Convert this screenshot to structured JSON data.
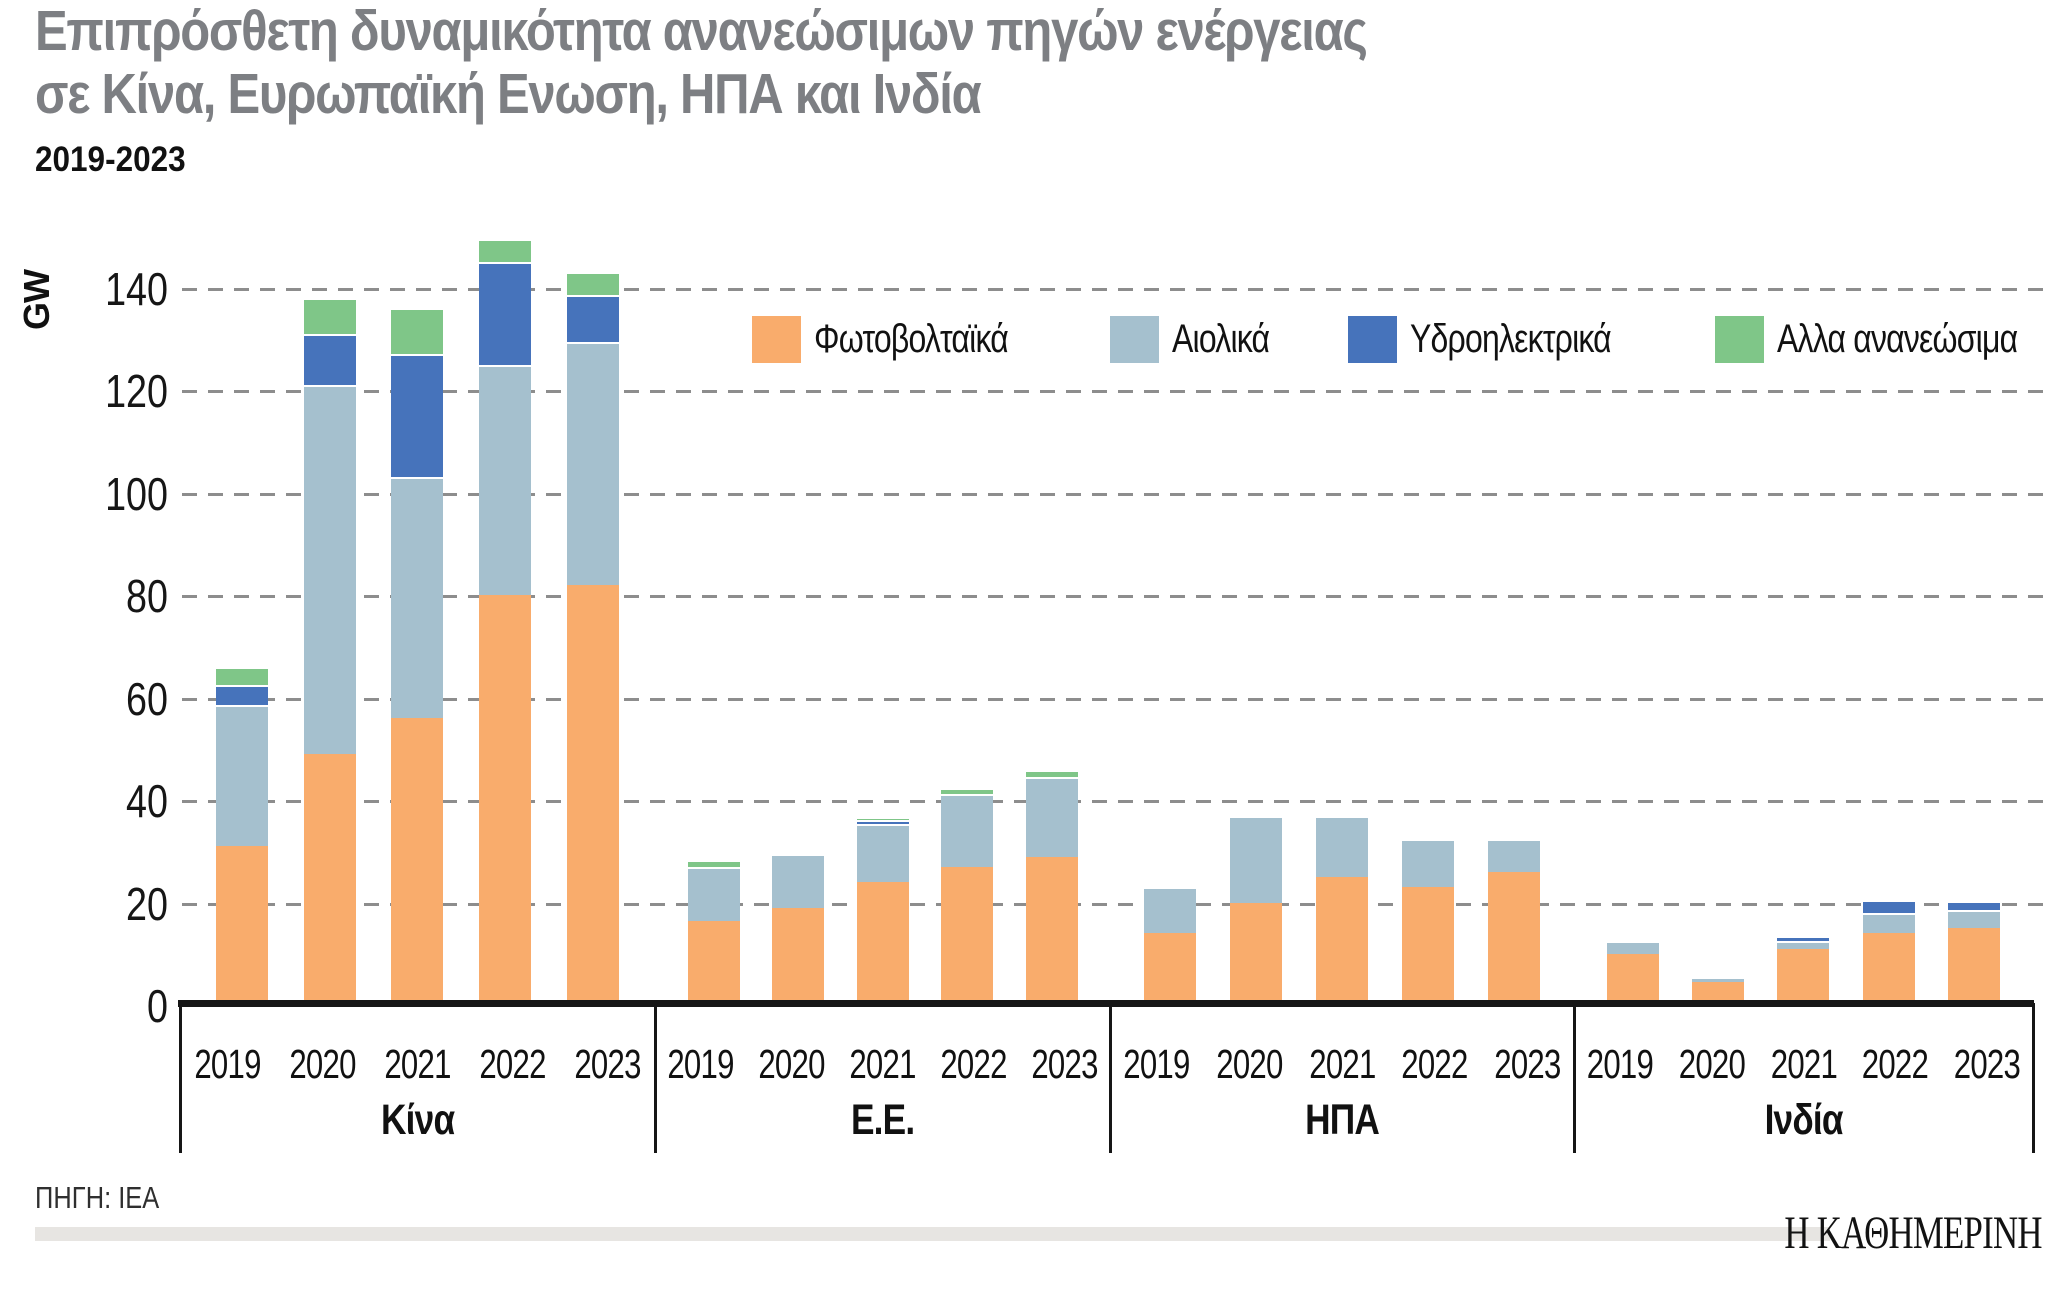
{
  "title": {
    "line1": "Επιπρόσθετη δυναμικότητα ανανεώσιμων πηγών ενέργειας",
    "line2": "σε Κίνα, Ευρωπαϊκή Ενωση, ΗΠΑ και Ινδία",
    "subtitle": "2019-2023"
  },
  "y_axis": {
    "unit": "GW",
    "tick_labels": [
      "0",
      "20",
      "40",
      "60",
      "80",
      "100",
      "120",
      "140"
    ]
  },
  "footer": {
    "source": "ΠΗΓΗ: IEA",
    "logo": "Η ΚΑΘΗΜΕΡΙΝΗ"
  },
  "chart_data": {
    "type": "bar",
    "stacked": true,
    "unit": "GW",
    "ylabel": "GW",
    "ylim": [
      0,
      140
    ],
    "yticks": [
      0,
      20,
      40,
      60,
      80,
      100,
      120,
      140
    ],
    "grid": "dashed-horizontal",
    "legend_position": "top-right",
    "series_names": [
      "Φωτοβολταϊκά",
      "Αιολικά",
      "Υδροηλεκτρικά",
      "Αλλα ανανεώσιμα"
    ],
    "series_colors": [
      "#F9AC6C",
      "#A5C0CE",
      "#4673BB",
      "#7FC688"
    ],
    "categories": [
      "2019",
      "2020",
      "2021",
      "2022",
      "2023"
    ],
    "groups": [
      {
        "label": "Κίνα",
        "values": [
          [
            30,
            27.5,
            4,
            3.5
          ],
          [
            48,
            72,
            10,
            7
          ],
          [
            55,
            47,
            24,
            9
          ],
          [
            79,
            45,
            20,
            4.5
          ],
          [
            81,
            47.5,
            9,
            4.5
          ]
        ]
      },
      {
        "label": "Ε.Ε.",
        "values": [
          [
            15.5,
            10.5,
            0,
            1.3
          ],
          [
            18,
            10.5,
            0,
            0
          ],
          [
            23,
            11.3,
            0.9,
            0.5
          ],
          [
            26,
            14.2,
            0,
            1.1
          ],
          [
            28,
            15.6,
            0,
            1.2
          ]
        ]
      },
      {
        "label": "ΗΠΑ",
        "values": [
          [
            13,
            9,
            0,
            0
          ],
          [
            19,
            17,
            0,
            0
          ],
          [
            24,
            12,
            0,
            0
          ],
          [
            22,
            9.5,
            0,
            0
          ],
          [
            25,
            6.5,
            0,
            0
          ]
        ]
      },
      {
        "label": "Ινδία",
        "values": [
          [
            9,
            2.5,
            0,
            0
          ],
          [
            3.5,
            1,
            0,
            0
          ],
          [
            10,
            1.6,
            0.8,
            0
          ],
          [
            13,
            4,
            2.5,
            0
          ],
          [
            14,
            3.6,
            1.8,
            0
          ]
        ]
      }
    ]
  }
}
